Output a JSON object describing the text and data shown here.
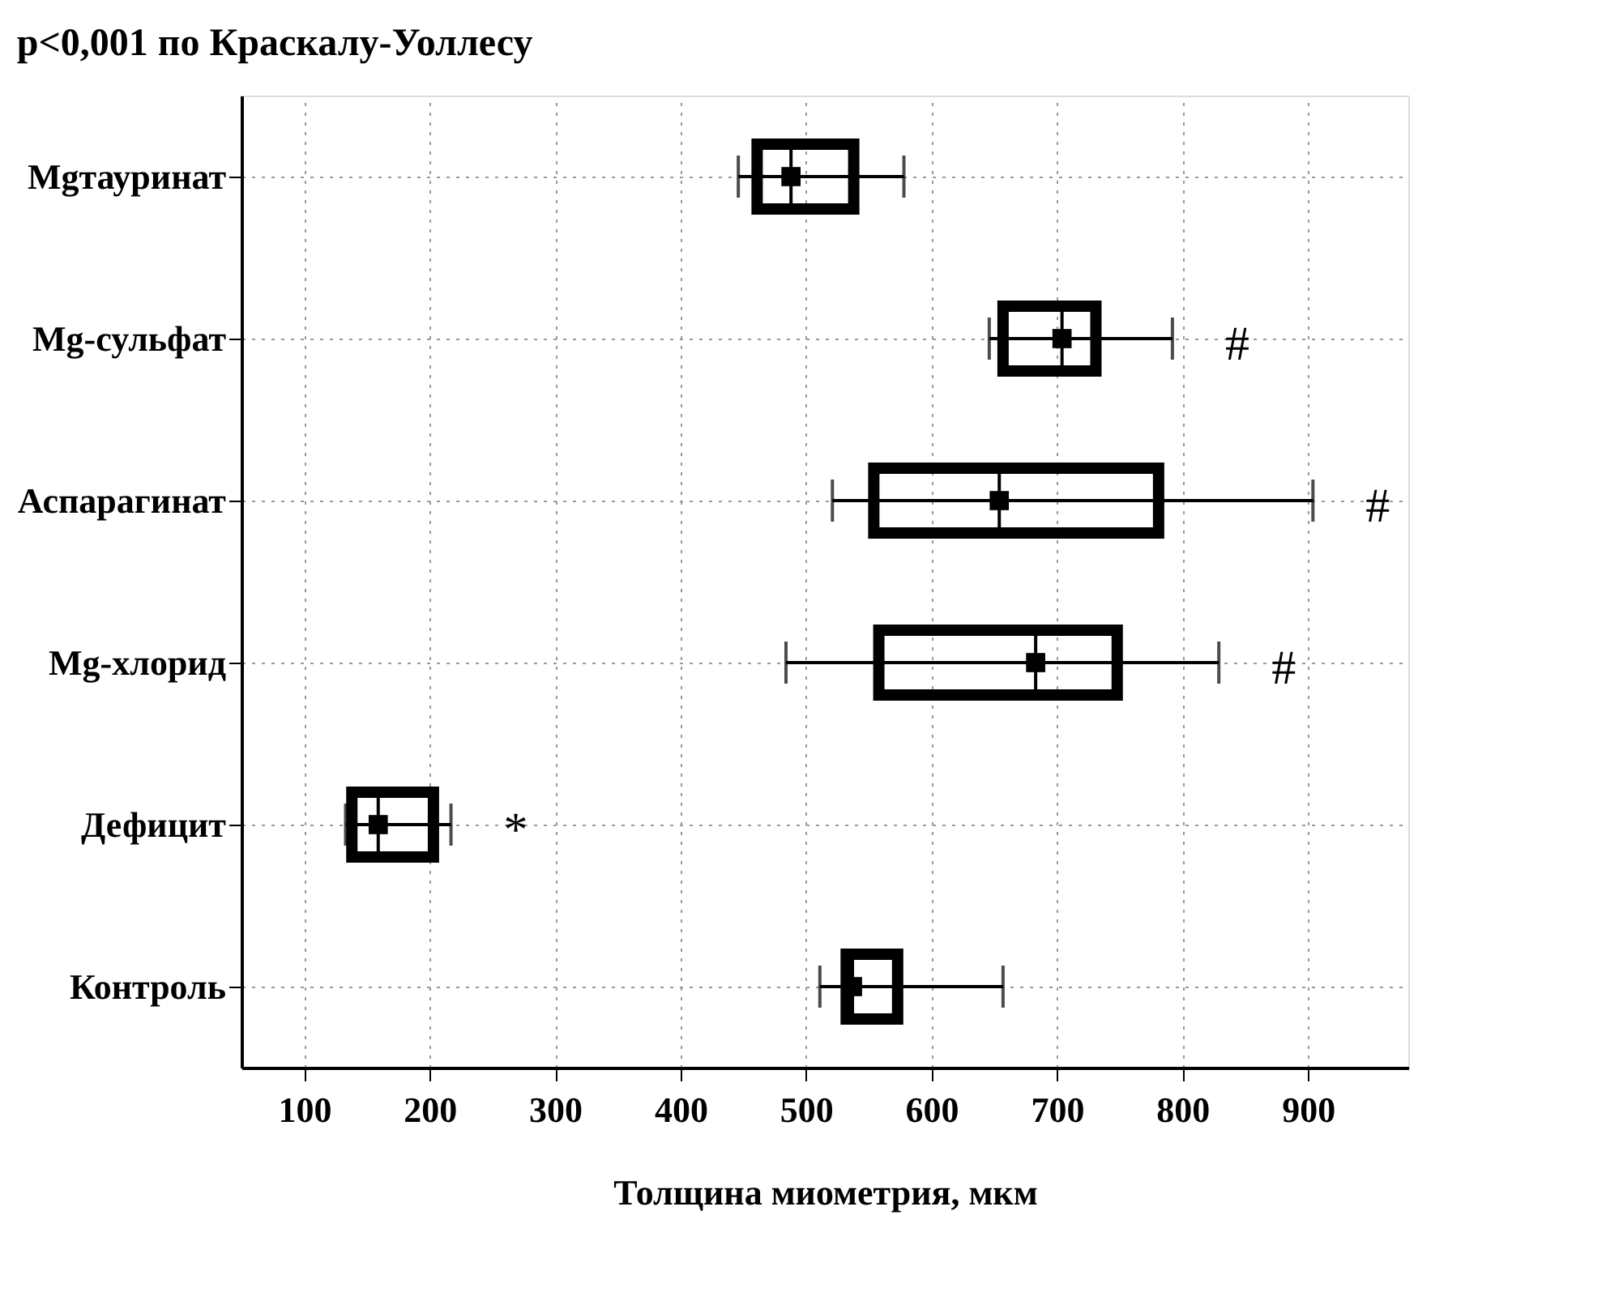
{
  "chart_data": {
    "type": "box",
    "orientation": "horizontal",
    "title": "p<0,001 по Краскалу-Уоллесу",
    "xlabel": "Толщина миометрия, мкм",
    "categories": [
      "Mgтауринат",
      "Mg-сульфат",
      "Аспарагинат",
      "Mg-хлорид",
      "Дефицит",
      "Контроль"
    ],
    "boxes": [
      {
        "low": 446,
        "q1": 461,
        "median": 488,
        "q3": 538,
        "high": 578,
        "mean": 488
      },
      {
        "low": 646,
        "q1": 657,
        "median": 704,
        "q3": 731,
        "high": 792,
        "mean": 704
      },
      {
        "low": 521,
        "q1": 554,
        "median": 654,
        "q3": 781,
        "high": 904,
        "mean": 654
      },
      {
        "low": 484,
        "q1": 558,
        "median": 683,
        "q3": 748,
        "high": 829,
        "mean": 683
      },
      {
        "low": 133,
        "q1": 138,
        "median": 159,
        "q3": 203,
        "high": 217,
        "mean": 159
      },
      {
        "low": 511,
        "q1": 532,
        "median": 537,
        "q3": 573,
        "high": 657,
        "mean": 537
      }
    ],
    "color": "#000000",
    "xlim": [
      50,
      980
    ],
    "xticks": [
      100,
      200,
      300,
      400,
      500,
      600,
      700,
      800,
      900
    ],
    "grid": true,
    "marker": "square",
    "value_labels": [
      null,
      "#",
      "#",
      "#",
      "*",
      null
    ]
  }
}
